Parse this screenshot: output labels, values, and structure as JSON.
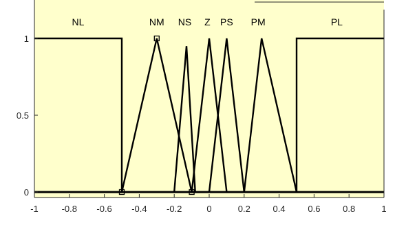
{
  "chart_data": {
    "type": "line",
    "xlim": [
      -1,
      1
    ],
    "ylim": [
      0,
      1
    ],
    "x_ticks": [
      -1,
      -0.8,
      -0.6,
      -0.4,
      -0.2,
      0,
      0.2,
      0.4,
      0.6,
      0.8,
      1
    ],
    "x_tick_labels": [
      "-1",
      "-0.8",
      "-0.6",
      "-0.4",
      "-0.2",
      "0",
      "0.2",
      "0.4",
      "0.6",
      "0.8",
      "1"
    ],
    "y_ticks": [
      0,
      0.5,
      1
    ],
    "y_tick_labels": [
      "0",
      "0.5",
      "1"
    ],
    "grid": false,
    "background": "#ffffcc",
    "line_color": "#000000",
    "series": [
      {
        "name": "NL",
        "x": [
          -1,
          -0.5,
          -0.5,
          1
        ],
        "y": [
          1,
          1,
          0,
          0
        ]
      },
      {
        "name": "NM",
        "x": [
          -1,
          -0.5,
          -0.3,
          -0.1,
          1
        ],
        "y": [
          0,
          0,
          1,
          0,
          0
        ]
      },
      {
        "name": "NS",
        "x": [
          -1,
          -0.2,
          -0.13,
          -0.08,
          1
        ],
        "y": [
          0,
          0,
          0.95,
          0,
          0
        ]
      },
      {
        "name": "Z",
        "x": [
          -1,
          -0.1,
          0,
          0.1,
          1
        ],
        "y": [
          0,
          0,
          1,
          0,
          0
        ]
      },
      {
        "name": "PS",
        "x": [
          -1,
          0,
          0.1,
          0.2,
          1
        ],
        "y": [
          0,
          0,
          1,
          0,
          0
        ]
      },
      {
        "name": "PM",
        "x": [
          -1,
          0.2,
          0.3,
          0.5,
          1
        ],
        "y": [
          0,
          0,
          1,
          0,
          0
        ]
      },
      {
        "name": "PL",
        "x": [
          -1,
          0.5,
          0.5,
          1
        ],
        "y": [
          0,
          0,
          1,
          1
        ]
      }
    ],
    "label_positions": [
      {
        "name": "NL",
        "x": -0.75
      },
      {
        "name": "NM",
        "x": -0.3
      },
      {
        "name": "NS",
        "x": -0.14
      },
      {
        "name": "Z",
        "x": -0.01
      },
      {
        "name": "PS",
        "x": 0.1
      },
      {
        "name": "PM",
        "x": 0.28
      },
      {
        "name": "PL",
        "x": 0.73
      }
    ],
    "markers": [
      {
        "x": -0.3,
        "y": 1
      },
      {
        "x": -0.5,
        "y": 0
      },
      {
        "x": -0.1,
        "y": 0
      }
    ]
  }
}
